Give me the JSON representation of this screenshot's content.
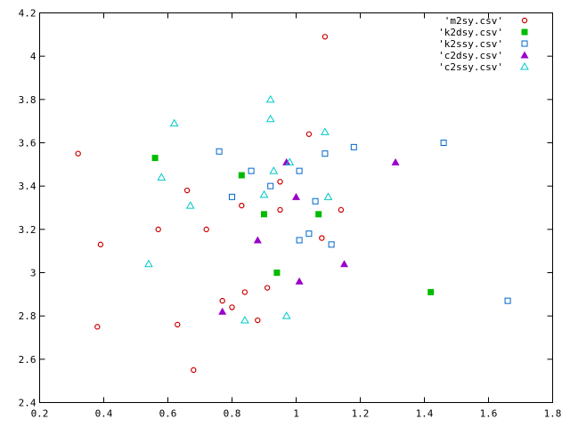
{
  "chart_data": {
    "type": "scatter",
    "xlim": [
      0.2,
      1.8
    ],
    "ylim": [
      2.4,
      4.2
    ],
    "x_ticks": [
      "0.2",
      "0.4",
      "0.6",
      "0.8",
      "1",
      "1.2",
      "1.4",
      "1.6",
      "1.8"
    ],
    "y_ticks": [
      "2.4",
      "2.6",
      "2.8",
      "3",
      "3.2",
      "3.4",
      "3.6",
      "3.8",
      "4",
      "4.2"
    ],
    "grid": false,
    "legend_position": "top-right",
    "series": [
      {
        "name": "'m2sy.csv'",
        "marker": "circle-open",
        "color": "#cc0000",
        "points": [
          [
            0.32,
            3.55
          ],
          [
            0.39,
            3.13
          ],
          [
            0.38,
            2.75
          ],
          [
            0.57,
            3.2
          ],
          [
            0.63,
            2.76
          ],
          [
            0.66,
            3.38
          ],
          [
            0.68,
            2.55
          ],
          [
            0.72,
            3.2
          ],
          [
            0.77,
            2.87
          ],
          [
            0.8,
            2.84
          ],
          [
            0.83,
            3.31
          ],
          [
            0.84,
            2.91
          ],
          [
            0.88,
            2.78
          ],
          [
            0.91,
            2.93
          ],
          [
            0.95,
            3.29
          ],
          [
            0.95,
            3.42
          ],
          [
            1.04,
            3.64
          ],
          [
            1.08,
            3.16
          ],
          [
            1.09,
            4.09
          ],
          [
            1.14,
            3.29
          ]
        ]
      },
      {
        "name": "'k2dsy.csv'",
        "marker": "square-filled",
        "color": "#00bb00",
        "points": [
          [
            0.56,
            3.53
          ],
          [
            0.83,
            3.45
          ],
          [
            0.9,
            3.27
          ],
          [
            0.94,
            3.0
          ],
          [
            1.07,
            3.27
          ],
          [
            1.42,
            2.91
          ]
        ]
      },
      {
        "name": "'k2ssy.csv'",
        "marker": "square-open",
        "color": "#0066cc",
        "points": [
          [
            0.76,
            3.56
          ],
          [
            0.8,
            3.35
          ],
          [
            0.86,
            3.47
          ],
          [
            0.92,
            3.4
          ],
          [
            1.01,
            3.47
          ],
          [
            1.01,
            3.15
          ],
          [
            1.04,
            3.18
          ],
          [
            1.06,
            3.33
          ],
          [
            1.09,
            3.55
          ],
          [
            1.11,
            3.13
          ],
          [
            1.18,
            3.58
          ],
          [
            1.46,
            3.6
          ],
          [
            1.66,
            2.87
          ]
        ]
      },
      {
        "name": "'c2dsy.csv'",
        "marker": "triangle-filled",
        "color": "#9900cc",
        "points": [
          [
            0.77,
            2.82
          ],
          [
            0.88,
            3.15
          ],
          [
            0.97,
            3.51
          ],
          [
            1.0,
            3.35
          ],
          [
            1.01,
            2.96
          ],
          [
            1.15,
            3.04
          ],
          [
            1.31,
            3.51
          ]
        ]
      },
      {
        "name": "'c2ssy.csv'",
        "marker": "triangle-open",
        "color": "#00c8c8",
        "points": [
          [
            0.54,
            3.04
          ],
          [
            0.58,
            3.44
          ],
          [
            0.62,
            3.69
          ],
          [
            0.67,
            3.31
          ],
          [
            0.84,
            2.78
          ],
          [
            0.9,
            3.36
          ],
          [
            0.92,
            3.8
          ],
          [
            0.92,
            3.71
          ],
          [
            0.93,
            3.47
          ],
          [
            0.97,
            2.8
          ],
          [
            0.98,
            3.51
          ],
          [
            1.09,
            3.65
          ],
          [
            1.1,
            3.35
          ]
        ]
      }
    ]
  }
}
